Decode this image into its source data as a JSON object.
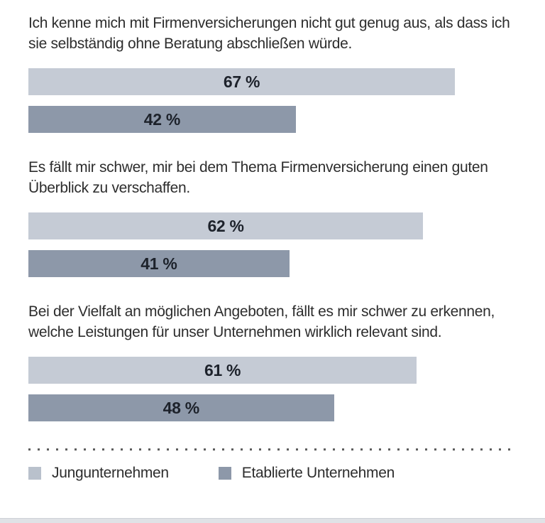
{
  "colors": {
    "bar_light": "#c5cbd5",
    "bar_dark": "#8d98a9",
    "statement_text": "#2d2d2d",
    "value_label_text": "#1d222b",
    "dotted_separator": "#5f5f5f",
    "bottom_strip": "#e0e2e6"
  },
  "chart_data": {
    "type": "bar",
    "orientation": "horizontal",
    "unit": "%",
    "xlim": [
      0,
      100
    ],
    "grid": false,
    "value_labels": "centered-in-bar",
    "legend_position": "bottom",
    "categories": [
      "Ich kenne mich mit Firmenversicherungen nicht gut genug aus, als dass ich sie selbständig ohne Beratung abschließen würde.",
      "Es fällt mir schwer, mir bei dem Thema Firmenversicherung einen guten Überblick zu verschaffen.",
      "Bei der Vielfalt an möglichen Angeboten, fällt es mir schwer zu erkennen, welche Leistungen für unser Unternehmen wirklich relevant sind."
    ],
    "series": [
      {
        "name": "Jungunternehmen",
        "color": "#c5cbd5",
        "values": [
          67,
          62,
          61
        ]
      },
      {
        "name": "Etablierte Unternehmen",
        "color": "#8d98a9",
        "values": [
          42,
          41,
          48
        ]
      }
    ]
  },
  "sections": [
    {
      "statement": "Ich kenne mich mit Firmenversicherungen nicht gut genug aus, als dass ich sie selbständig ohne Beratung abschließen würde.",
      "bars": [
        {
          "series": "Jungunternehmen",
          "value": 67,
          "label": "67 %"
        },
        {
          "series": "Etablierte Unternehmen",
          "value": 42,
          "label": "42 %"
        }
      ]
    },
    {
      "statement": "Es fällt mir schwer, mir bei dem Thema Firmenversicherung einen guten Überblick zu verschaffen.",
      "bars": [
        {
          "series": "Jungunternehmen",
          "value": 62,
          "label": "62 %"
        },
        {
          "series": "Etablierte Unternehmen",
          "value": 41,
          "label": "41 %"
        }
      ]
    },
    {
      "statement": "Bei der Vielfalt an möglichen Angeboten, fällt es mir schwer zu erkennen, welche Leistungen für unser Unternehmen wirklich relevant sind.",
      "bars": [
        {
          "series": "Jungunternehmen",
          "value": 61,
          "label": "61 %"
        },
        {
          "series": "Etablierte Unternehmen",
          "value": 48,
          "label": "48 %"
        }
      ]
    }
  ],
  "legend": {
    "items": [
      {
        "label": "Jungunternehmen",
        "color": "#b9c1cc"
      },
      {
        "label": "Etablierte Unternehmen",
        "color": "#8d98a9"
      }
    ]
  }
}
